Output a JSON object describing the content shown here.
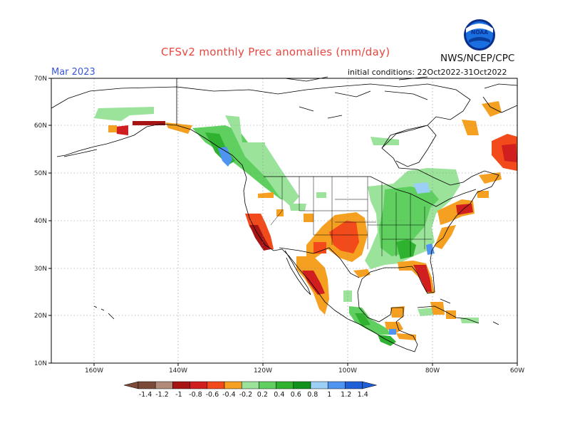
{
  "title": "CFSv2 monthly Prec anomalies (mm/day)",
  "agency": "NWS/NCEP/CPC",
  "logo_text": "NOAA",
  "valid_month": "Mar 2023",
  "initial_conditions": "initial conditions: 22Oct2022-31Oct2022",
  "lat_labels": [
    "70N",
    "60N",
    "50N",
    "40N",
    "30N",
    "20N",
    "10N"
  ],
  "lon_labels": [
    "160W",
    "140W",
    "120W",
    "100W",
    "80W",
    "60W"
  ],
  "colorbar": {
    "labels": [
      "-1.4",
      "-1.2",
      "-1",
      "-0.8",
      "-0.6",
      "-0.4",
      "-0.2",
      "0.2",
      "0.4",
      "0.6",
      "0.8",
      "1",
      "1.2",
      "1.4"
    ],
    "colors": [
      "#7b4a38",
      "#b18a7a",
      "#a61414",
      "#d11e1e",
      "#f24a1a",
      "#f5a020",
      "#ffffff",
      "#9be39b",
      "#5fcf5f",
      "#2fb22f",
      "#11921c",
      "#9ccff5",
      "#4f94f0",
      "#1f5fd8"
    ]
  },
  "colors": {
    "title": "#e8463f",
    "valid_month": "#3a57d8",
    "grid": "#888888"
  }
}
